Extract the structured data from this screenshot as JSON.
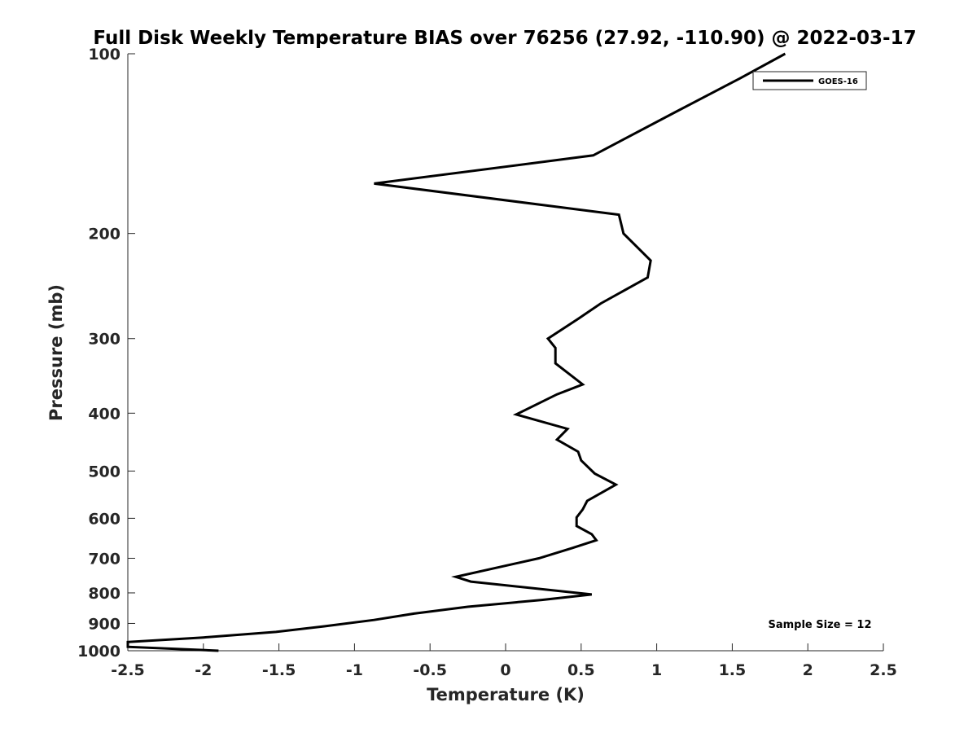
{
  "chart_data": {
    "type": "line",
    "title": "Full Disk Weekly Temperature BIAS over 76256 (27.92, -110.90) @ 2022-03-17",
    "xlabel": "Temperature (K)",
    "ylabel": "Pressure (mb)",
    "xlim": [
      -2.5,
      2.5
    ],
    "ylim": [
      1000,
      100
    ],
    "y_scale": "log",
    "y_reversed": true,
    "grid": false,
    "x_ticks": [
      {
        "value": -2.5,
        "label": "-2.5"
      },
      {
        "value": -2,
        "label": "-2"
      },
      {
        "value": -1.5,
        "label": "-1.5"
      },
      {
        "value": -1,
        "label": "-1"
      },
      {
        "value": -0.5,
        "label": "-0.5"
      },
      {
        "value": 0,
        "label": "0"
      },
      {
        "value": 0.5,
        "label": "0.5"
      },
      {
        "value": 1,
        "label": "1"
      },
      {
        "value": 1.5,
        "label": "1.5"
      },
      {
        "value": 2,
        "label": "2"
      },
      {
        "value": 2.5,
        "label": "2.5"
      }
    ],
    "y_ticks": [
      {
        "value": 100,
        "label": "100"
      },
      {
        "value": 200,
        "label": "200"
      },
      {
        "value": 300,
        "label": "300"
      },
      {
        "value": 400,
        "label": "400"
      },
      {
        "value": 500,
        "label": "500"
      },
      {
        "value": 600,
        "label": "600"
      },
      {
        "value": 700,
        "label": "700"
      },
      {
        "value": 800,
        "label": "800"
      },
      {
        "value": 900,
        "label": "900"
      },
      {
        "value": 1000,
        "label": "1000"
      }
    ],
    "legend_position": "top-right",
    "series": [
      {
        "name": "GOES-16",
        "color": "#000000",
        "points": [
          {
            "t": 1.85,
            "p": 100
          },
          {
            "t": 1.55,
            "p": 110
          },
          {
            "t": 1.13,
            "p": 125
          },
          {
            "t": 0.58,
            "p": 148
          },
          {
            "t": -0.87,
            "p": 165
          },
          {
            "t": 0.75,
            "p": 186
          },
          {
            "t": 0.78,
            "p": 200
          },
          {
            "t": 0.96,
            "p": 222
          },
          {
            "t": 0.94,
            "p": 237
          },
          {
            "t": 0.63,
            "p": 262
          },
          {
            "t": 0.48,
            "p": 278
          },
          {
            "t": 0.28,
            "p": 300
          },
          {
            "t": 0.33,
            "p": 311
          },
          {
            "t": 0.33,
            "p": 330
          },
          {
            "t": 0.51,
            "p": 358
          },
          {
            "t": 0.34,
            "p": 372
          },
          {
            "t": 0.07,
            "p": 402
          },
          {
            "t": 0.41,
            "p": 425
          },
          {
            "t": 0.34,
            "p": 443
          },
          {
            "t": 0.48,
            "p": 464
          },
          {
            "t": 0.5,
            "p": 480
          },
          {
            "t": 0.59,
            "p": 505
          },
          {
            "t": 0.73,
            "p": 527
          },
          {
            "t": 0.54,
            "p": 561
          },
          {
            "t": 0.51,
            "p": 580
          },
          {
            "t": 0.47,
            "p": 598
          },
          {
            "t": 0.47,
            "p": 618
          },
          {
            "t": 0.57,
            "p": 638
          },
          {
            "t": 0.6,
            "p": 653
          },
          {
            "t": 0.44,
            "p": 673
          },
          {
            "t": 0.22,
            "p": 700
          },
          {
            "t": -0.33,
            "p": 752
          },
          {
            "t": -0.23,
            "p": 766
          },
          {
            "t": 0.57,
            "p": 805
          },
          {
            "t": 0.24,
            "p": 822
          },
          {
            "t": -0.25,
            "p": 844
          },
          {
            "t": -0.6,
            "p": 866
          },
          {
            "t": -0.87,
            "p": 888
          },
          {
            "t": -1.2,
            "p": 910
          },
          {
            "t": -1.52,
            "p": 930
          },
          {
            "t": -2.0,
            "p": 950
          },
          {
            "t": -2.5,
            "p": 967
          },
          {
            "t": -2.5,
            "p": 985
          },
          {
            "t": -1.9,
            "p": 1000
          }
        ]
      }
    ],
    "annotation": "Sample Size = 12"
  }
}
